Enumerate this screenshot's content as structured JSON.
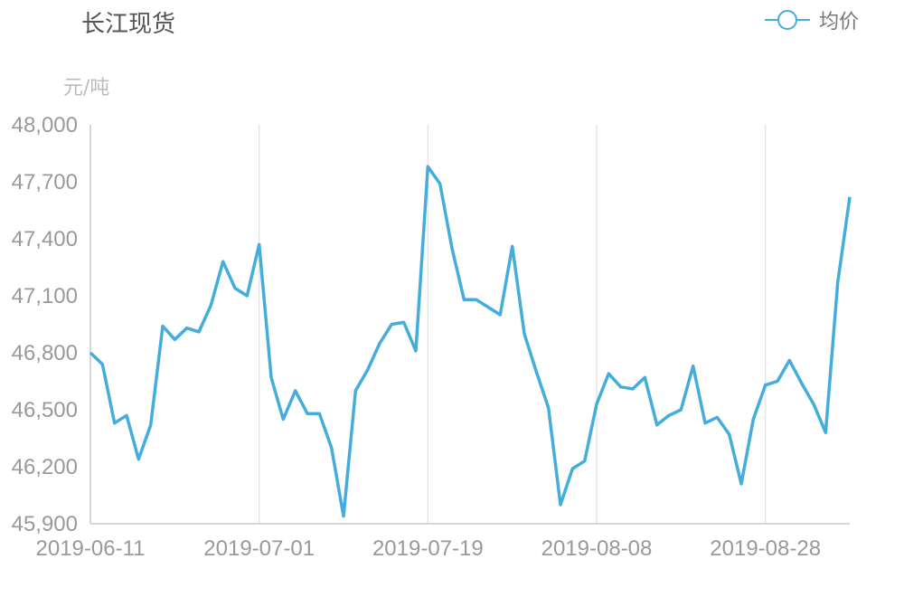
{
  "header": {
    "title": "长江现货",
    "legend_label": "均价"
  },
  "colors": {
    "line": "#45ADDB",
    "grid": "#e6e6e6",
    "axis": "#c8c8c8",
    "tick_text": "#999999"
  },
  "chart_data": {
    "type": "line",
    "ylabel": "元/吨",
    "ylim": [
      45900,
      48000
    ],
    "yticks": [
      "45,900",
      "46,200",
      "46,500",
      "46,800",
      "47,100",
      "47,400",
      "47,700",
      "48,000"
    ],
    "ytick_values": [
      45900,
      46200,
      46500,
      46800,
      47100,
      47400,
      47700,
      48000
    ],
    "xticks": [
      "2019-06-11",
      "2019-07-01",
      "2019-07-19",
      "2019-08-08",
      "2019-08-28"
    ],
    "xtick_index": [
      0,
      14,
      28,
      42,
      56
    ],
    "grid": "vertical",
    "legend": "top-right",
    "series": [
      {
        "name": "均价",
        "values": [
          46800,
          46740,
          46430,
          46470,
          46240,
          46420,
          46940,
          46870,
          46930,
          46910,
          47050,
          47280,
          47140,
          47100,
          47370,
          46670,
          46450,
          46600,
          46480,
          46480,
          46300,
          45940,
          46600,
          46710,
          46850,
          46950,
          46960,
          46810,
          47780,
          47690,
          47350,
          47080,
          47080,
          47040,
          47000,
          47360,
          46900,
          46700,
          46510,
          46000,
          46190,
          46230,
          46530,
          46690,
          46620,
          46610,
          46670,
          46420,
          46470,
          46500,
          46730,
          46430,
          46460,
          46370,
          46110,
          46450,
          46630,
          46650,
          46760,
          46640,
          46530,
          46380,
          47170,
          47620
        ]
      }
    ]
  }
}
